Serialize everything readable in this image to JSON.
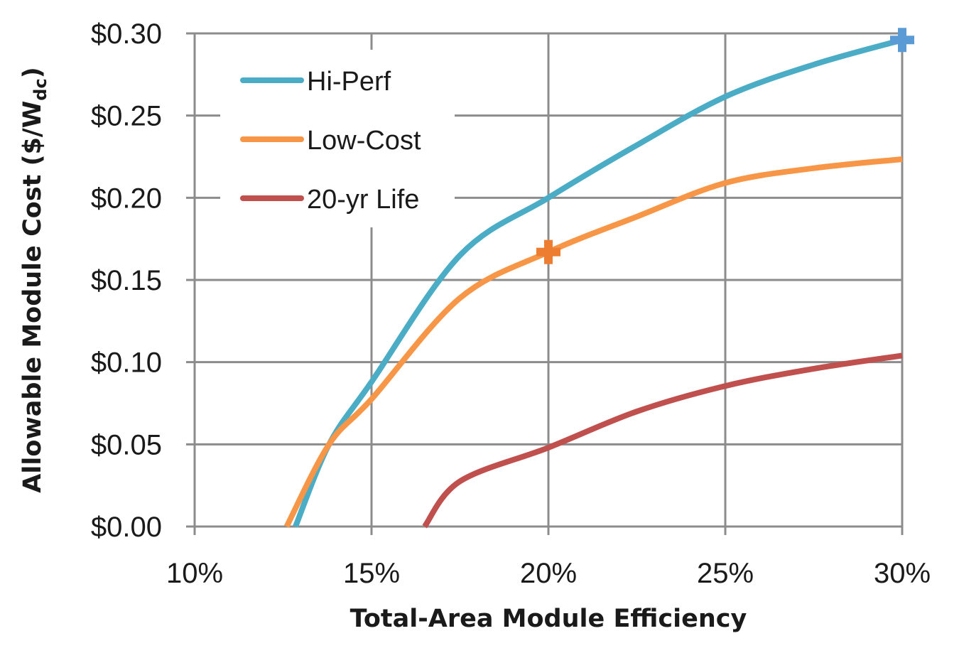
{
  "chart_data": {
    "type": "line",
    "title": "",
    "xlabel": "Total-Area Module Efficiency",
    "ylabel_main": "Allowable Module Cost ($/W",
    "ylabel_sub": "dc",
    "ylabel_close": ")",
    "xlim": [
      0.1,
      0.3
    ],
    "ylim": [
      0.0,
      0.3
    ],
    "x_ticks": [
      0.1,
      0.15,
      0.2,
      0.25,
      0.3
    ],
    "x_tick_labels": [
      "10%",
      "15%",
      "20%",
      "25%",
      "30%"
    ],
    "y_ticks": [
      0.0,
      0.05,
      0.1,
      0.15,
      0.2,
      0.25,
      0.3
    ],
    "y_tick_labels": [
      "$0.00",
      "$0.05",
      "$0.10",
      "$0.15",
      "$0.20",
      "$0.25",
      "$0.30"
    ],
    "grid": true,
    "legend_position": "top-left",
    "series": [
      {
        "name": "Hi-Perf",
        "color": "#4bacc6",
        "x": [
          0.1285,
          0.138,
          0.15,
          0.175,
          0.2,
          0.225,
          0.25,
          0.275,
          0.3
        ],
        "y": [
          0.0,
          0.05,
          0.088,
          0.165,
          0.2,
          0.232,
          0.2615,
          0.281,
          0.296
        ]
      },
      {
        "name": "Low-Cost",
        "color": "#f79646",
        "x": [
          0.126,
          0.138,
          0.15,
          0.175,
          0.2,
          0.225,
          0.25,
          0.275,
          0.3
        ],
        "y": [
          0.0,
          0.05,
          0.0775,
          0.139,
          0.167,
          0.1885,
          0.209,
          0.218,
          0.2235
        ]
      },
      {
        "name": "20-yr Life",
        "color": "#c0504d",
        "x": [
          0.165,
          0.175,
          0.2,
          0.225,
          0.25,
          0.275,
          0.3
        ],
        "y": [
          0.0,
          0.0275,
          0.048,
          0.07,
          0.0855,
          0.096,
          0.104
        ]
      }
    ],
    "markers": [
      {
        "series": "Hi-Perf",
        "x": 0.3,
        "y": 0.296,
        "symbol": "plus",
        "color": "#5b9bd5"
      },
      {
        "series": "Low-Cost",
        "x": 0.2,
        "y": 0.167,
        "symbol": "plus",
        "color": "#ed7d31"
      }
    ],
    "axis_color": "#8c8c8c"
  }
}
